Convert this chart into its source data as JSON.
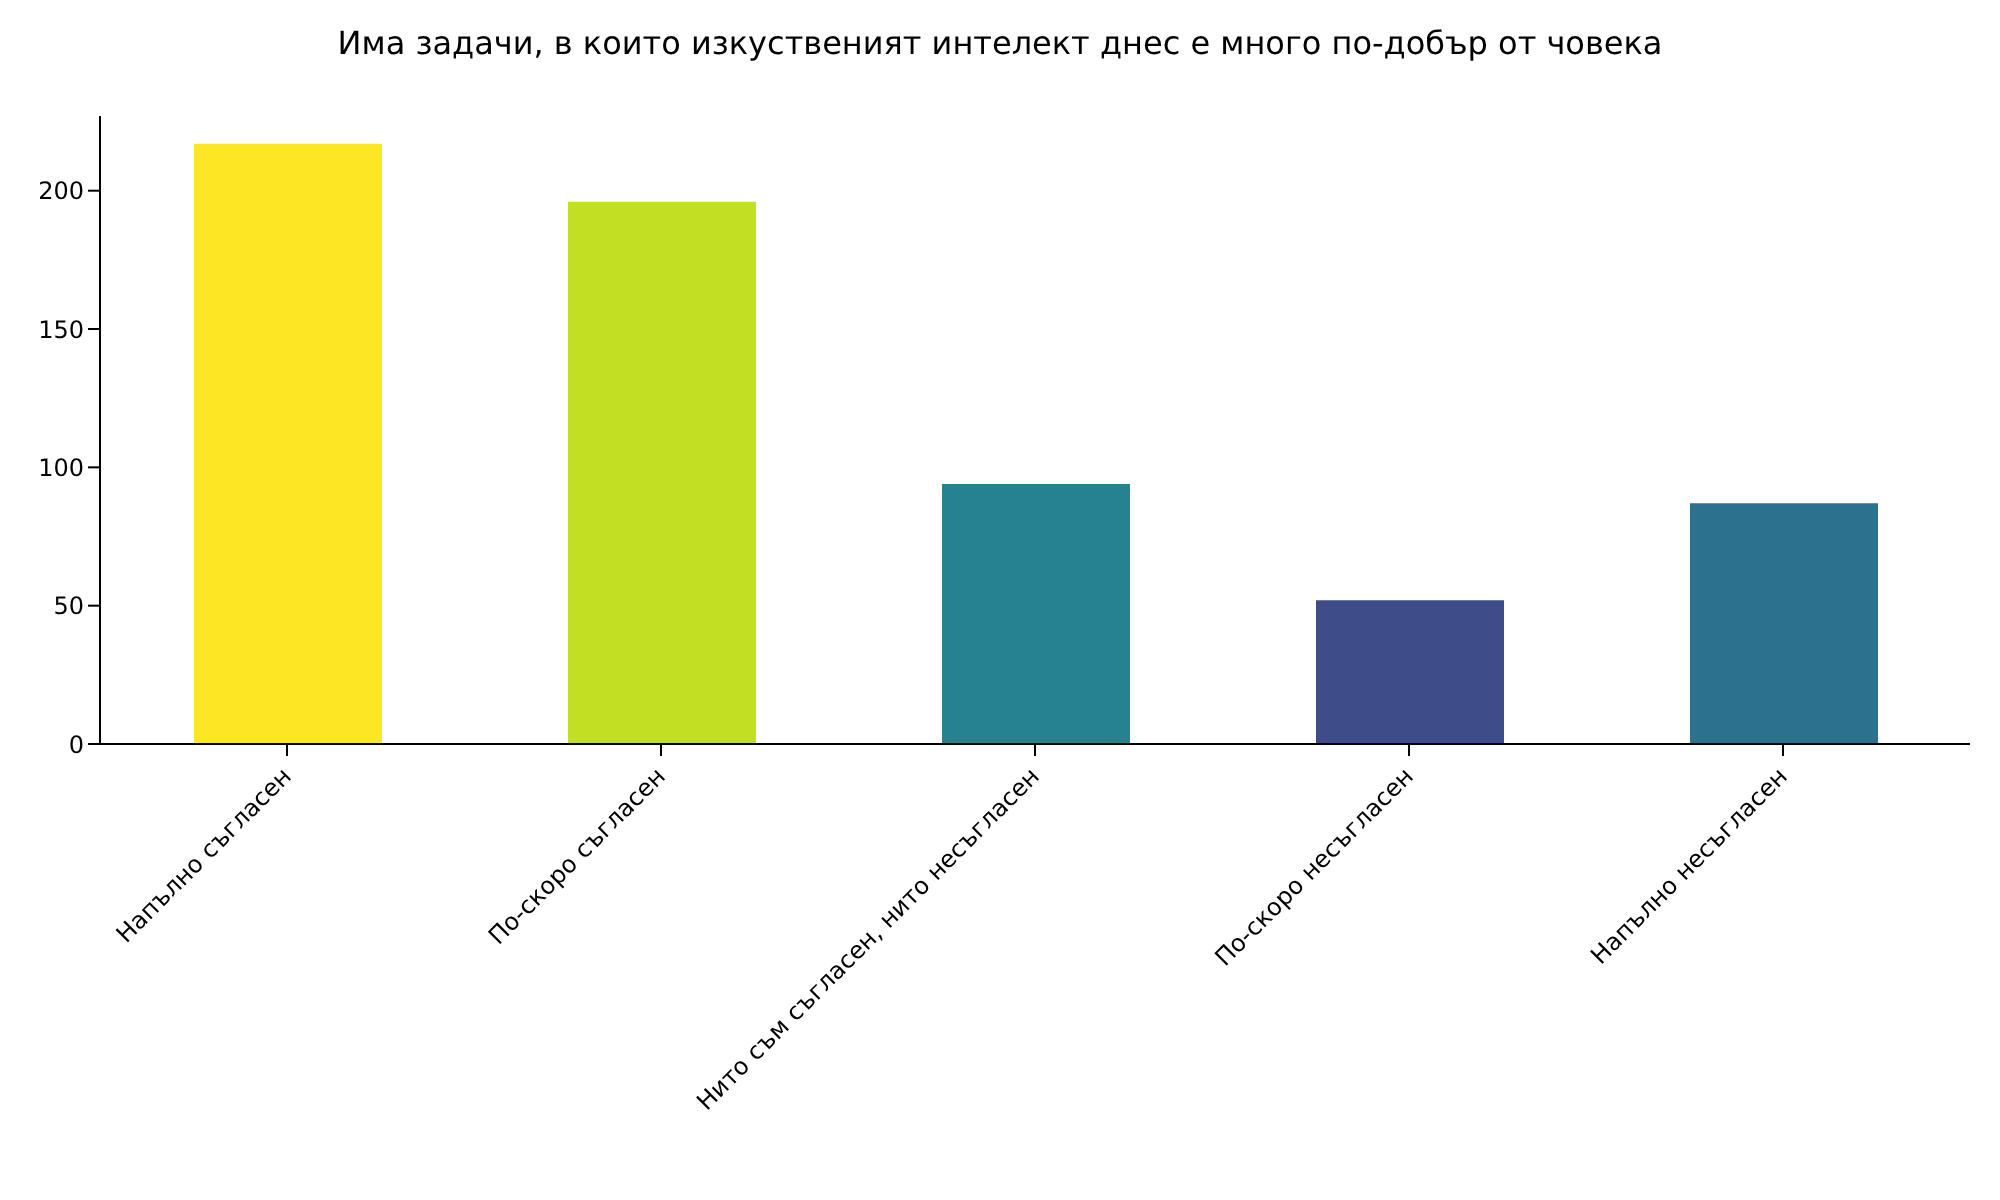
{
  "chart_data": {
    "type": "bar",
    "title": "Има задачи, в които изкуственият интелект днес е много по-добър от човека",
    "categories": [
      "Напълно съгласен",
      "По-скоро съгласен",
      "Нито съм съгласен, нито несъгласен",
      "По-скоро несъгласен",
      "Напълно несъгласен"
    ],
    "values": [
      217,
      196,
      94,
      52,
      87
    ],
    "colors": [
      "#fde725",
      "#c2df23",
      "#26828e",
      "#3e4c8a",
      "#2c728e"
    ],
    "ylim": [
      0,
      227
    ],
    "yticks": [
      0,
      50,
      100,
      150,
      200
    ],
    "grid": false,
    "legend": false
  }
}
